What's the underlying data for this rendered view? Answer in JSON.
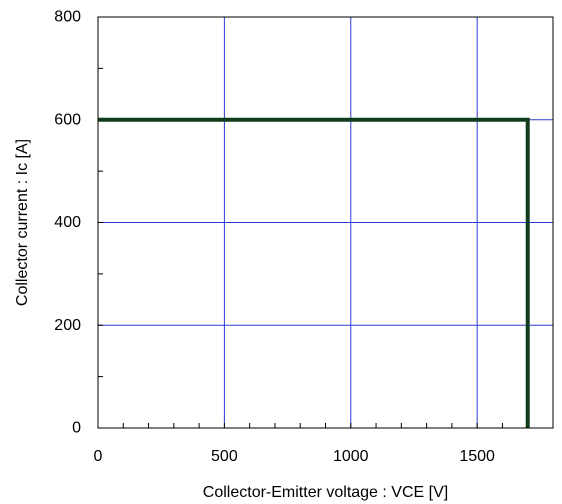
{
  "chart_data": {
    "type": "line",
    "title": "",
    "xlabel": "Collector-Emitter voltage : VCE [V]",
    "ylabel": "Collector current : Ic [A]",
    "xlim": [
      0,
      1800
    ],
    "ylim": [
      0,
      800
    ],
    "x_ticks": [
      0,
      500,
      1000,
      1500
    ],
    "y_ticks": [
      0,
      200,
      400,
      600,
      800
    ],
    "x_tick_labels": [
      "0",
      "500",
      "1000",
      "1500"
    ],
    "y_tick_labels": [
      "0",
      "200",
      "400",
      "600",
      "800"
    ],
    "grid": true,
    "legend": "none",
    "colors": {
      "series": "#0f3d1a",
      "grid": "#2b3bd6",
      "frame": "#000000"
    },
    "series": [
      {
        "points": [
          {
            "x": 0,
            "y": 600
          },
          {
            "x": 1700,
            "y": 600
          },
          {
            "x": 1700,
            "y": 0
          }
        ]
      }
    ]
  }
}
